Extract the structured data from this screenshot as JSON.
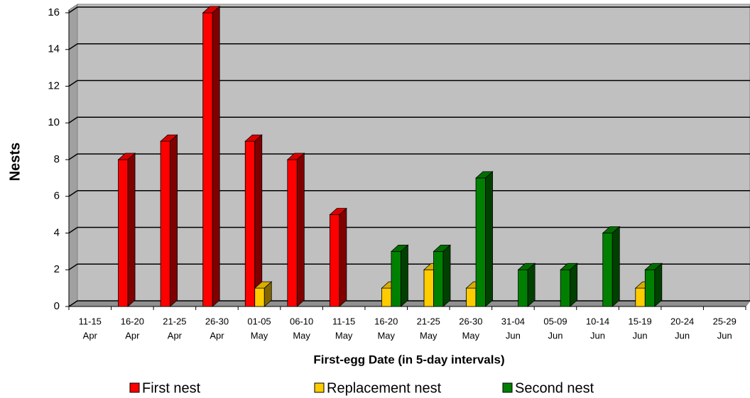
{
  "chart_data": {
    "type": "bar3d",
    "xlabel": "First-egg Date (in 5-day intervals)",
    "ylabel": "Nests",
    "categories": [
      [
        "11-15",
        "Apr"
      ],
      [
        "16-20",
        "Apr"
      ],
      [
        "21-25",
        "Apr"
      ],
      [
        "26-30",
        "Apr"
      ],
      [
        "01-05",
        "May"
      ],
      [
        "06-10",
        "May"
      ],
      [
        "11-15",
        "May"
      ],
      [
        "16-20",
        "May"
      ],
      [
        "21-25",
        "May"
      ],
      [
        "26-30",
        "May"
      ],
      [
        "31-04",
        "Jun"
      ],
      [
        "05-09",
        "Jun"
      ],
      [
        "10-14",
        "Jun"
      ],
      [
        "15-19",
        "Jun"
      ],
      [
        "20-24",
        "Jun"
      ],
      [
        "25-29",
        "Jun"
      ]
    ],
    "series": [
      {
        "name": "First nest",
        "color": "#ff0000",
        "values": [
          0,
          8,
          9,
          16,
          9,
          8,
          5,
          0,
          0,
          0,
          0,
          0,
          0,
          0,
          0,
          0
        ]
      },
      {
        "name": "Replacement nest",
        "color": "#ffcc00",
        "values": [
          0,
          0,
          0,
          0,
          1,
          0,
          0,
          1,
          2,
          1,
          0,
          0,
          0,
          1,
          0,
          0
        ]
      },
      {
        "name": "Second nest",
        "color": "#008000",
        "values": [
          0,
          0,
          0,
          0,
          0,
          0,
          0,
          3,
          3,
          7,
          2,
          2,
          4,
          2,
          0,
          0
        ]
      }
    ],
    "ylim": [
      0,
      16
    ],
    "yticks": [
      0,
      2,
      4,
      6,
      8,
      10,
      12,
      14,
      16
    ],
    "grid": true,
    "legend": "bottom"
  }
}
